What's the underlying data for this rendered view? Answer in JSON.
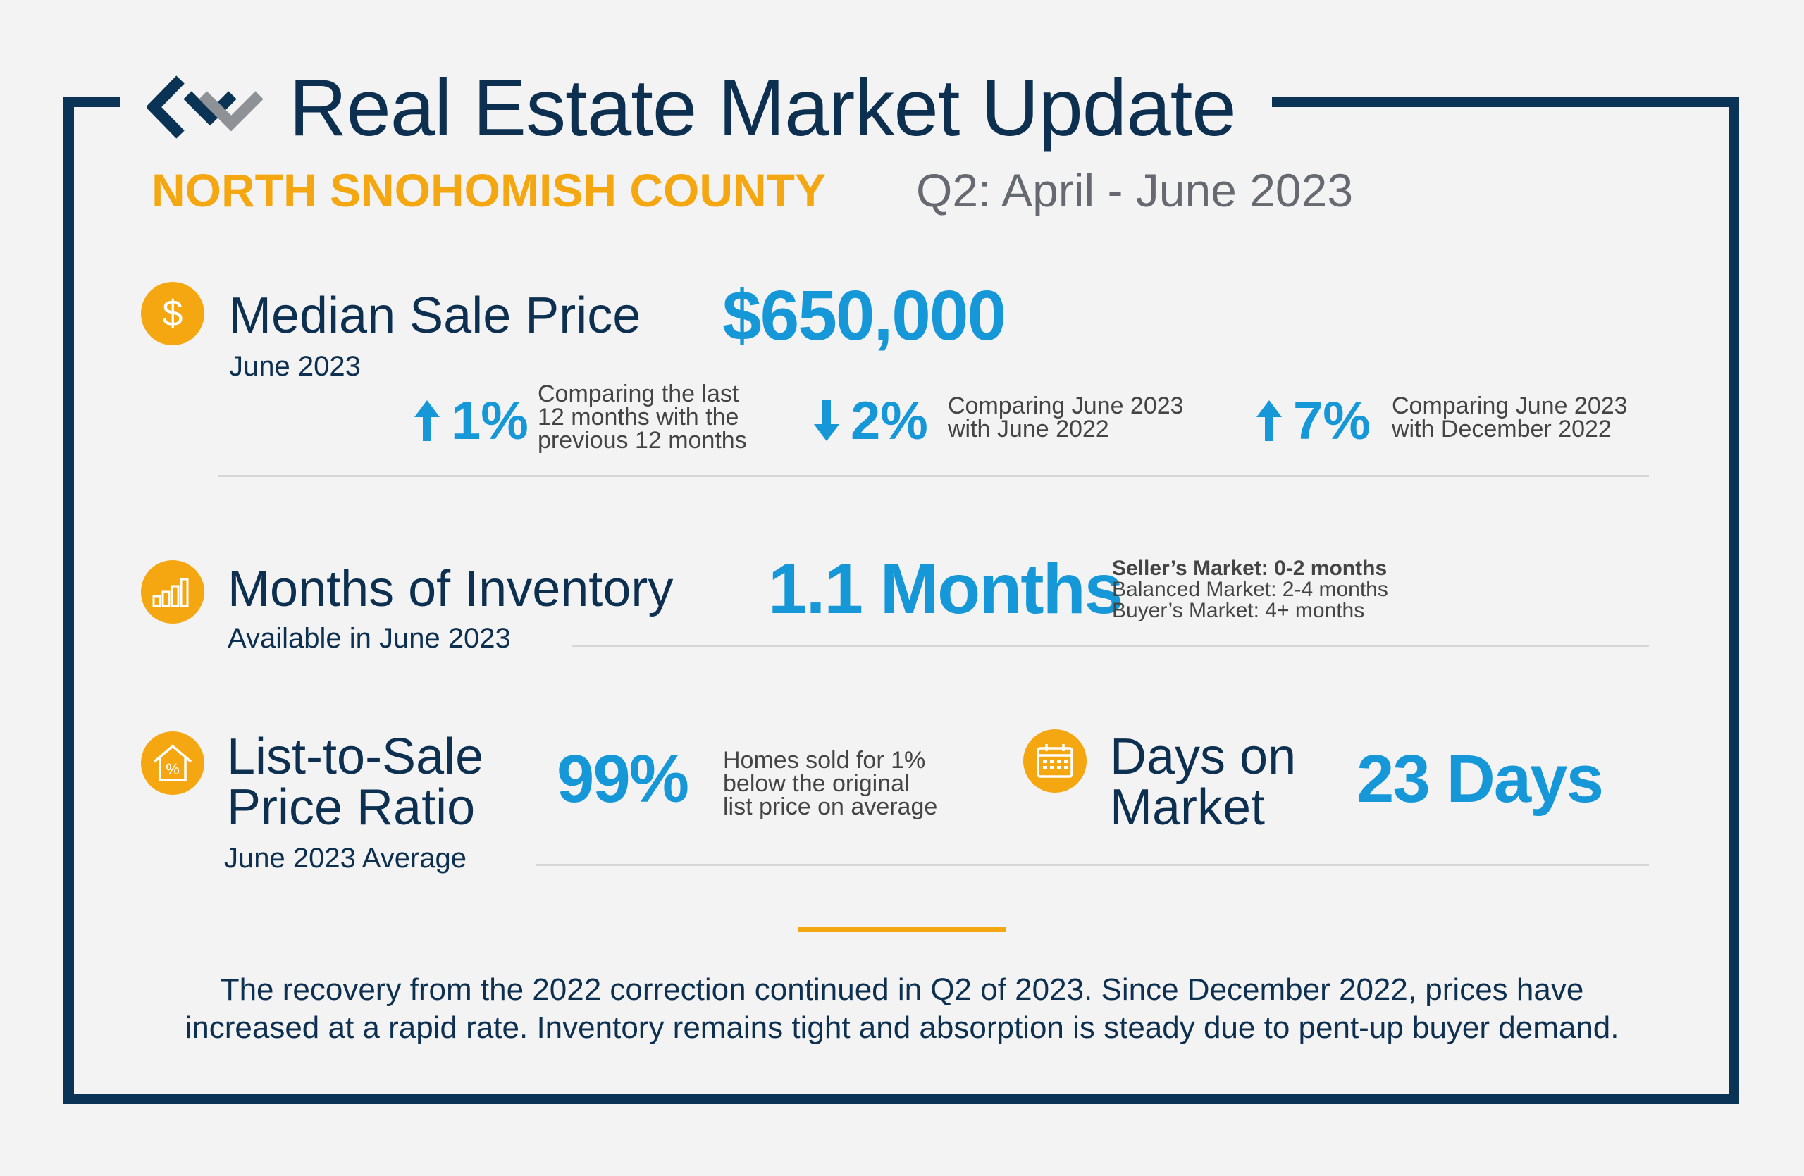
{
  "header": {
    "title": "Real Estate Market Update",
    "region": "NORTH SNOHOMISH COUNTY",
    "quarter": "Q2: April - June 2023"
  },
  "median_sale_price": {
    "label": "Median Sale Price",
    "sub_label": "June 2023",
    "value": "$650,000",
    "comparisons": [
      {
        "direction": "up",
        "value": "1%",
        "lines": [
          "Comparing the last",
          "12 months with the",
          "previous 12 months"
        ]
      },
      {
        "direction": "down",
        "value": "2%",
        "lines": [
          "Comparing June 2023",
          "with June 2022"
        ]
      },
      {
        "direction": "up",
        "value": "7%",
        "lines": [
          "Comparing June 2023",
          "with December 2022"
        ]
      }
    ]
  },
  "months_of_inventory": {
    "label": "Months of Inventory",
    "sub_label": "Available in June 2023",
    "value": "1.1 Months",
    "legend": [
      "Seller’s Market: 0-2 months",
      "Balanced Market: 2-4 months",
      "Buyer’s Market: 4+ months"
    ]
  },
  "list_to_sale": {
    "label_line1": "List-to-Sale",
    "label_line2": "Price Ratio",
    "sub_label": "June 2023 Average",
    "value": "99%",
    "note_lines": [
      "Homes sold for 1%",
      "below the original",
      "list price on average"
    ]
  },
  "days_on_market": {
    "label_line1": "Days on",
    "label_line2": "Market",
    "value": "23 Days"
  },
  "summary": {
    "line1": "The recovery from the 2022 correction continued in Q2 of 2023. Since December 2022, prices have",
    "line2": "increased at a rapid rate. Inventory remains tight and absorption is steady due to pent-up buyer demand."
  },
  "colors": {
    "navy": "#0b3356",
    "blue": "#1597d8",
    "gold": "#f5a712",
    "background": "#f3f3f3"
  },
  "icons": [
    "logo-mark",
    "dollar-icon",
    "bar-chart-icon",
    "house-percent-icon",
    "calendar-icon",
    "arrow-up-icon",
    "arrow-down-icon"
  ]
}
